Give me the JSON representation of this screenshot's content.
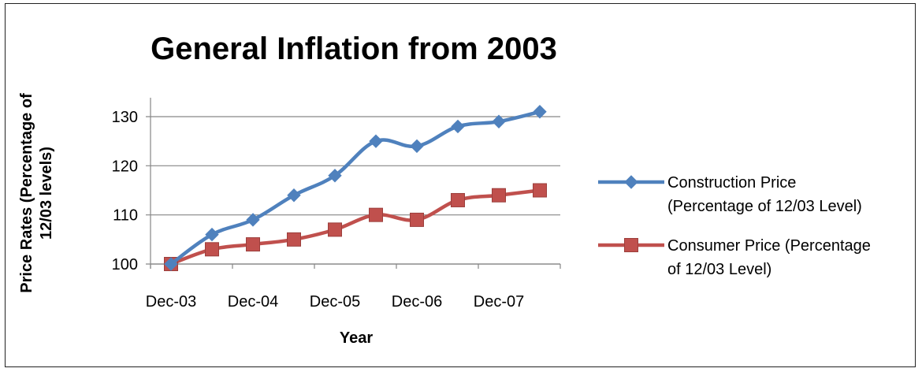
{
  "chart_data": {
    "type": "line",
    "title": "General Inflation from 2003",
    "xlabel": "Year",
    "ylabel_lines": [
      "Price Rates (Percentage of",
      "12/03 levels)"
    ],
    "ylim": [
      100,
      130
    ],
    "yticks": [
      100,
      110,
      120,
      130
    ],
    "x": [
      "Dec-03",
      "Jun-04",
      "Dec-04",
      "Jun-05",
      "Dec-05",
      "Jun-06",
      "Dec-06",
      "Jun-07",
      "Dec-07",
      "Jun-08"
    ],
    "x_tick_labels": [
      "Dec-03",
      "Dec-04",
      "Dec-05",
      "Dec-06",
      "Dec-07"
    ],
    "grid": true,
    "legend_position": "right",
    "series": [
      {
        "name_lines": [
          "Construction Price",
          "(Percentage of 12/03 Level)"
        ],
        "values": [
          100,
          106,
          109,
          114,
          118,
          125,
          124,
          128,
          129,
          131
        ],
        "color": "#4F81BD",
        "marker": "diamond"
      },
      {
        "name_lines": [
          "Consumer Price (Percentage",
          "of 12/03 Level)"
        ],
        "values": [
          100,
          103,
          104,
          105,
          107,
          110,
          109,
          113,
          114,
          115
        ],
        "color": "#C0504D",
        "marker": "square"
      }
    ]
  }
}
